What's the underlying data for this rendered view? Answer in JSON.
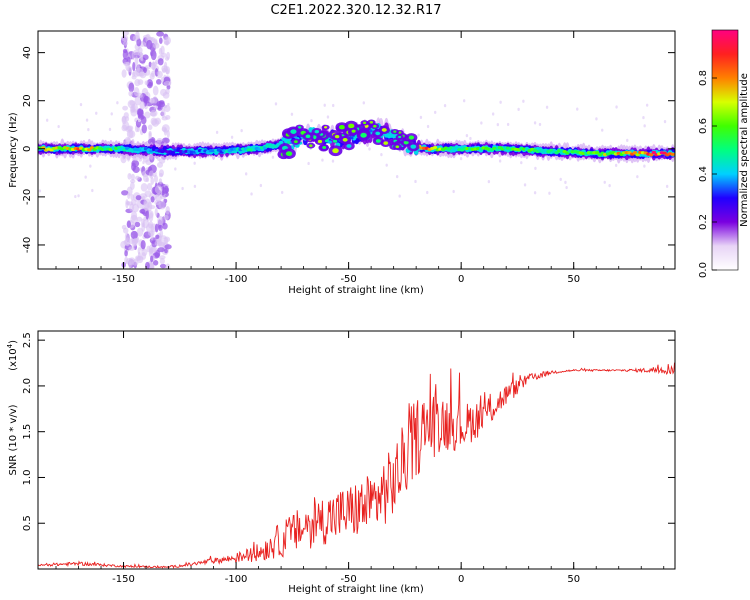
{
  "title": "C2E1.2022.320.12.32.R17",
  "chart_data": [
    {
      "type": "heatmap",
      "xlabel": "Height of straight line (km)",
      "ylabel": "Frequency (Hz)",
      "xlim": [
        -188,
        95
      ],
      "ylim": [
        -50,
        49
      ],
      "x_ticks": [
        "-150",
        "-100",
        "-50",
        "0",
        "50"
      ],
      "x_tick_values": [
        -150,
        -100,
        -50,
        0,
        50
      ],
      "y_ticks": [
        "-40",
        "-20",
        "0",
        "20",
        "40"
      ],
      "y_tick_values": [
        -40,
        -20,
        0,
        20,
        40
      ],
      "colorbar": {
        "label": "Normalized spectral amplitude",
        "range": [
          0.0,
          1.0
        ],
        "ticks": [
          "0.0",
          "0.2",
          "0.4",
          "0.6",
          "0.8"
        ],
        "tick_values": [
          0.0,
          0.2,
          0.4,
          0.6,
          0.8
        ],
        "colormap": [
          "#ffffff",
          "#e8d4f6",
          "#7a00e0",
          "#2000ff",
          "#00d0ff",
          "#00ff80",
          "#40ff00",
          "#d8ff00",
          "#ff8000",
          "#ff2020",
          "#ff0080"
        ]
      },
      "ridge": {
        "x": [
          -188,
          -170,
          -150,
          -130,
          -110,
          -90,
          -75,
          -65,
          -55,
          -45,
          -35,
          -25,
          -15,
          -5,
          5,
          20,
          40,
          60,
          80,
          95
        ],
        "y": [
          0,
          0,
          0,
          -1,
          -1,
          0,
          3,
          6,
          4,
          6,
          8,
          2,
          0,
          0,
          0,
          0,
          -1,
          -2,
          -2,
          -2
        ],
        "amplitude": [
          0.75,
          0.8,
          0.5,
          0.3,
          0.4,
          0.5,
          0.45,
          0.5,
          0.45,
          0.4,
          0.45,
          0.55,
          0.85,
          0.5,
          0.6,
          0.6,
          0.55,
          0.65,
          0.9,
          0.95
        ]
      },
      "interference_band": {
        "x_from": -150,
        "x_to": -130
      }
    },
    {
      "type": "line",
      "xlabel": "Height of straight line (km)",
      "ylabel": "SNR (10 * v/v)",
      "y_multiplier": "(x10",
      "y_multiplier_exp": "4",
      "xlim": [
        -188,
        95
      ],
      "ylim": [
        0,
        2.6
      ],
      "x_ticks": [
        "-150",
        "-100",
        "-50",
        "0",
        "50"
      ],
      "x_tick_values": [
        -150,
        -100,
        -50,
        0,
        50
      ],
      "y_ticks": [
        "0.5",
        "1.0",
        "1.5",
        "2.0",
        "2.5"
      ],
      "y_tick_values": [
        0.5,
        1.0,
        1.5,
        2.0,
        2.5
      ],
      "series": [
        {
          "color": "#e8211f",
          "x": [
            -188,
            -170,
            -150,
            -130,
            -120,
            -110,
            -100,
            -90,
            -80,
            -70,
            -60,
            -50,
            -40,
            -30,
            -20,
            -10,
            0,
            10,
            20,
            30,
            40,
            50,
            60,
            70,
            80,
            90,
            95
          ],
          "y": [
            0.04,
            0.06,
            0.03,
            0.02,
            0.05,
            0.09,
            0.12,
            0.18,
            0.32,
            0.45,
            0.55,
            0.62,
            0.7,
            0.95,
            1.45,
            1.62,
            1.55,
            1.68,
            1.9,
            2.08,
            2.15,
            2.17,
            2.17,
            2.17,
            2.17,
            2.18,
            2.2
          ],
          "noise": [
            0.01,
            0.02,
            0.01,
            0.01,
            0.02,
            0.03,
            0.05,
            0.1,
            0.2,
            0.25,
            0.28,
            0.3,
            0.35,
            0.4,
            0.45,
            0.35,
            0.25,
            0.2,
            0.12,
            0.05,
            0.02,
            0.01,
            0.01,
            0.01,
            0.02,
            0.05,
            0.08
          ]
        }
      ]
    }
  ]
}
